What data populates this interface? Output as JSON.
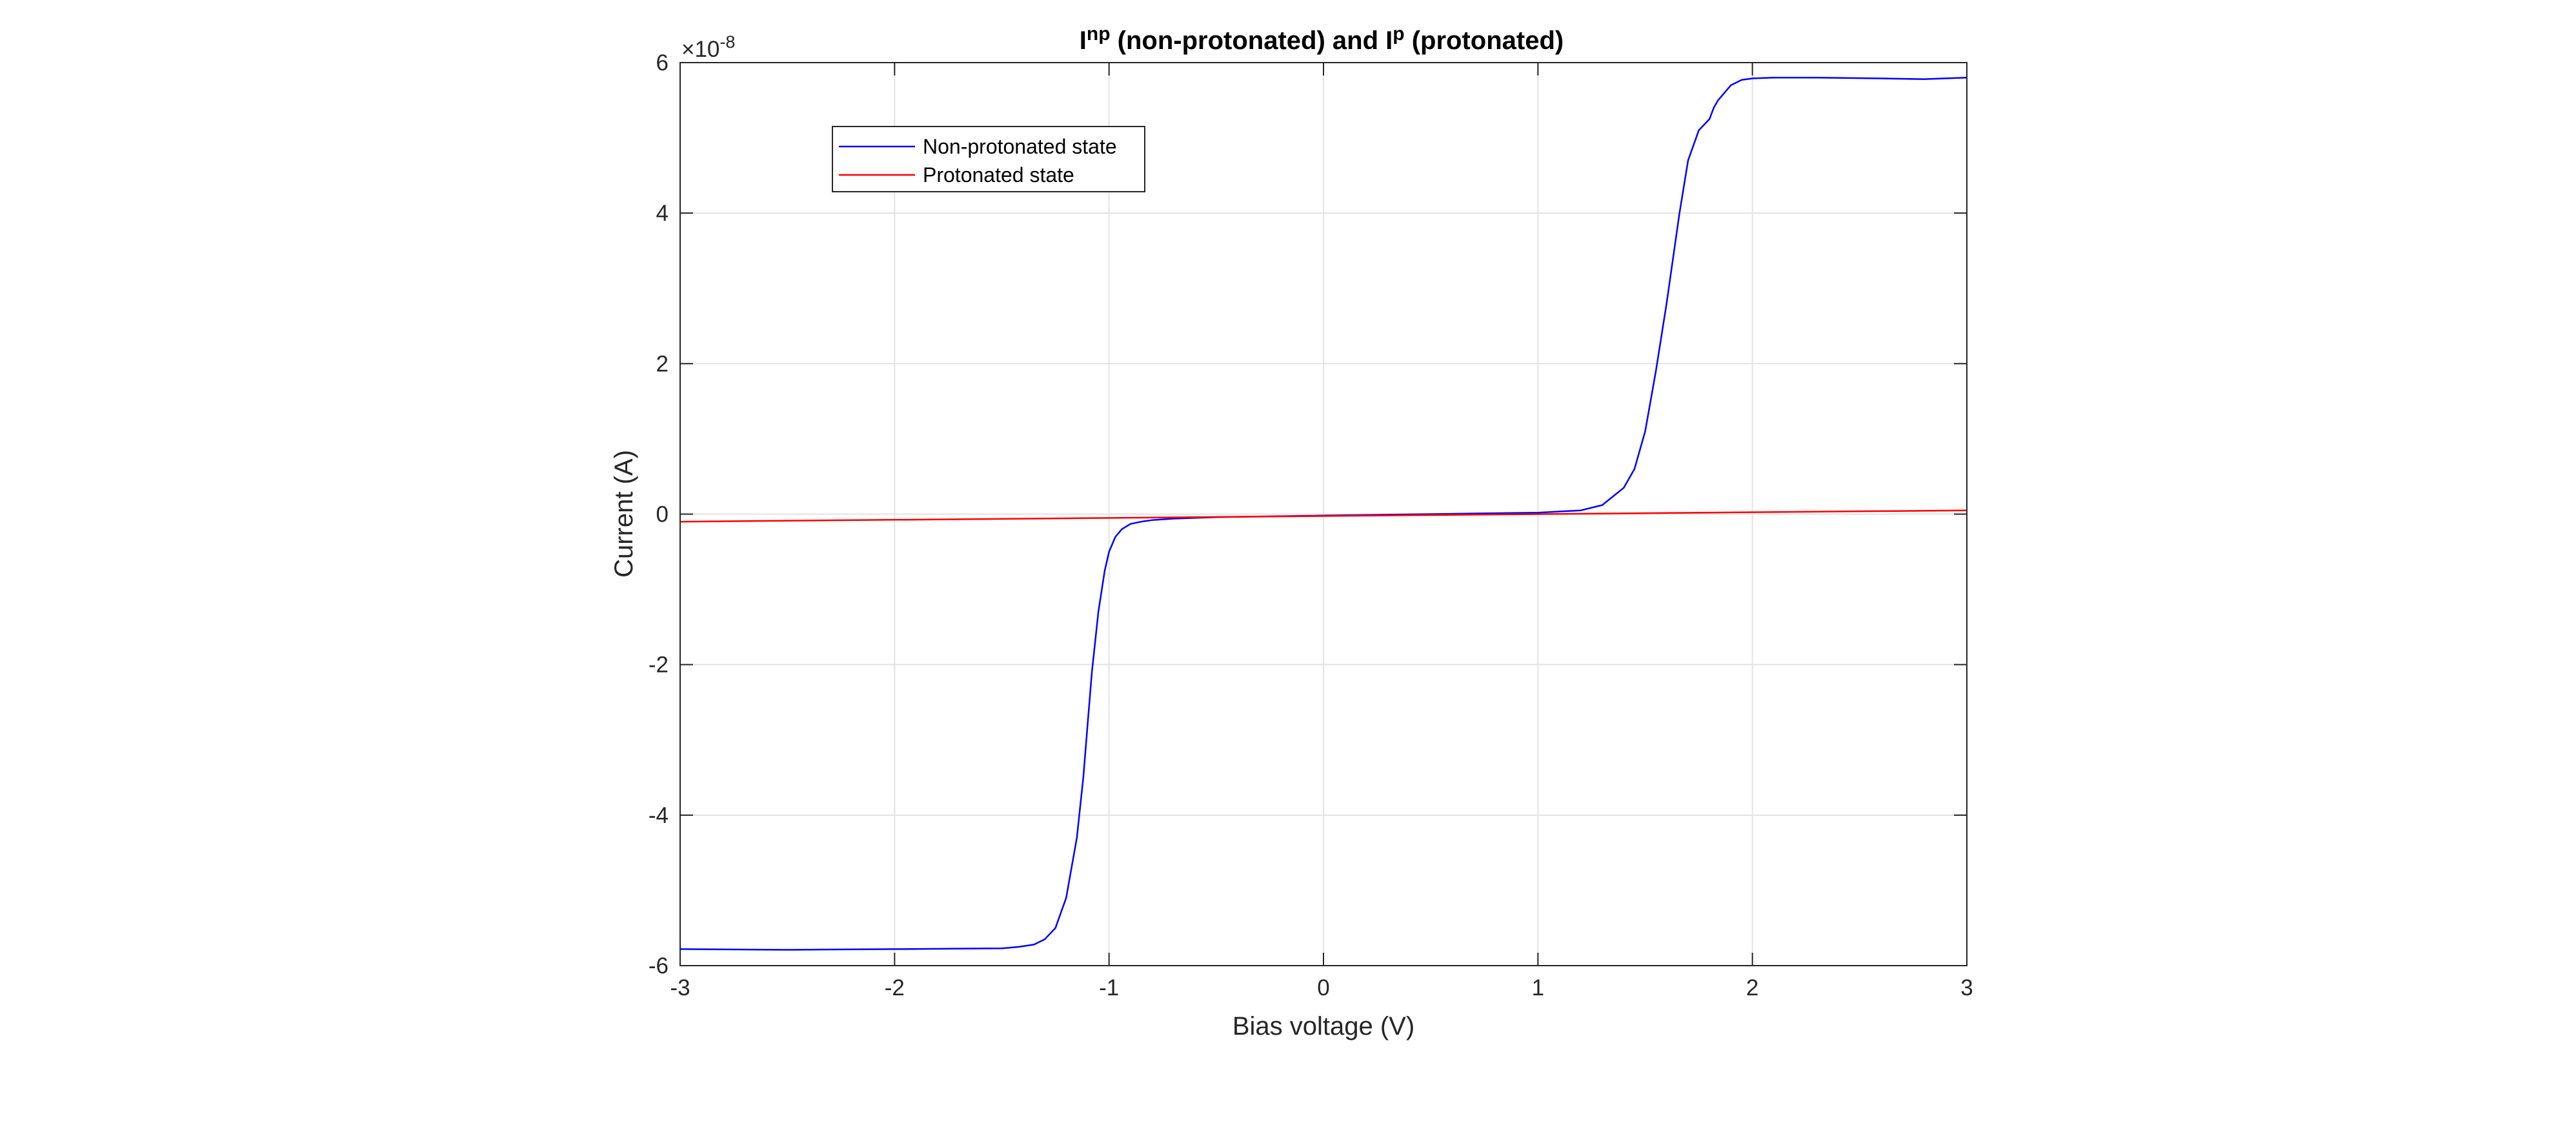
{
  "chart_data": {
    "type": "line",
    "title": {
      "parts": [
        {
          "text": "I",
          "sup": false
        },
        {
          "text": "np",
          "sup": true
        },
        {
          "text": " (non-protonated) and I",
          "sup": false
        },
        {
          "text": "p",
          "sup": true
        },
        {
          "text": " (protonated)",
          "sup": false
        }
      ]
    },
    "xlabel": "Bias voltage (V)",
    "ylabel": "Current (A)",
    "y_exponent": {
      "base": "×10",
      "exp": "-8"
    },
    "xlim": [
      -3,
      3
    ],
    "ylim": [
      -6,
      6
    ],
    "y_scale_factor": 1e-08,
    "xticks": [
      -3,
      -2,
      -1,
      0,
      1,
      2,
      3
    ],
    "xtick_labels": [
      "-3",
      "-2",
      "-1",
      "0",
      "1",
      "2",
      "3"
    ],
    "yticks": [
      -6,
      -4,
      -2,
      0,
      2,
      4,
      6
    ],
    "ytick_labels": [
      "-6",
      "-4",
      "-2",
      "0",
      "2",
      "4",
      "6"
    ],
    "grid": true,
    "legend_position": "top-left",
    "series": [
      {
        "name": "Non-protonated state",
        "color": "#0000ff",
        "x": [
          -3.0,
          -2.5,
          -2.0,
          -1.5,
          -1.42,
          -1.35,
          -1.3,
          -1.25,
          -1.2,
          -1.15,
          -1.12,
          -1.1,
          -1.08,
          -1.05,
          -1.02,
          -1.0,
          -0.97,
          -0.94,
          -0.9,
          -0.85,
          -0.8,
          -0.7,
          -0.5,
          0.0,
          0.5,
          1.0,
          1.2,
          1.3,
          1.4,
          1.45,
          1.5,
          1.55,
          1.6,
          1.63,
          1.66,
          1.7,
          1.75,
          1.8,
          1.82,
          1.84,
          1.9,
          1.95,
          2.0,
          2.1,
          2.3,
          2.6,
          2.8,
          3.0
        ],
        "y": [
          -5.78,
          -5.79,
          -5.78,
          -5.77,
          -5.75,
          -5.72,
          -5.65,
          -5.5,
          -5.1,
          -4.3,
          -3.5,
          -2.8,
          -2.1,
          -1.3,
          -0.75,
          -0.5,
          -0.3,
          -0.2,
          -0.13,
          -0.1,
          -0.08,
          -0.06,
          -0.04,
          -0.02,
          0.0,
          0.02,
          0.05,
          0.12,
          0.35,
          0.6,
          1.1,
          1.9,
          2.8,
          3.4,
          4.0,
          4.7,
          5.1,
          5.25,
          5.4,
          5.5,
          5.7,
          5.77,
          5.79,
          5.8,
          5.8,
          5.79,
          5.78,
          5.8
        ]
      },
      {
        "name": "Protonated state",
        "color": "#ff0000",
        "x": [
          -3.0,
          3.0
        ],
        "y": [
          -0.1,
          0.05
        ]
      }
    ]
  }
}
